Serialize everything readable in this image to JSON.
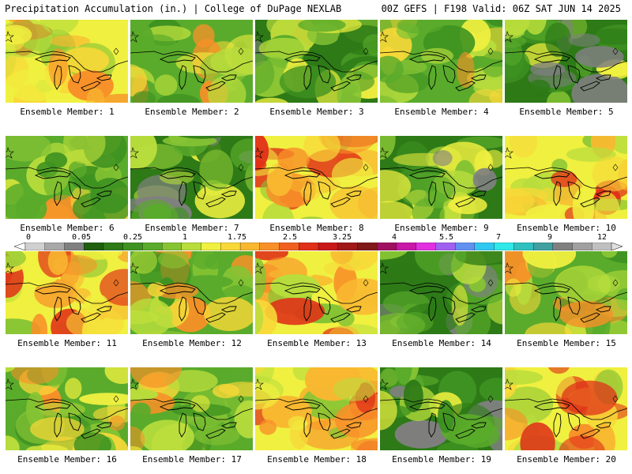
{
  "header": {
    "left_title": "Precipitation Accumulation (in.) | College of DuPage NEXLAB",
    "right_title": "00Z GEFS | F198 Valid: 06Z SAT JUN 14 2025"
  },
  "panels": [
    {
      "label": "Ensemble Member: 1",
      "scheme": "wet"
    },
    {
      "label": "Ensemble Member: 2",
      "scheme": "mixed"
    },
    {
      "label": "Ensemble Member: 3",
      "scheme": "dry"
    },
    {
      "label": "Ensemble Member: 4",
      "scheme": "mixed"
    },
    {
      "label": "Ensemble Member: 5",
      "scheme": "dry"
    },
    {
      "label": "Ensemble Member: 6",
      "scheme": "mixed"
    },
    {
      "label": "Ensemble Member: 7",
      "scheme": "dry"
    },
    {
      "label": "Ensemble Member: 8",
      "scheme": "wet"
    },
    {
      "label": "Ensemble Member: 9",
      "scheme": "dry"
    },
    {
      "label": "Ensemble Member: 10",
      "scheme": "wet"
    },
    {
      "label": "Ensemble Member: 11",
      "scheme": "wet"
    },
    {
      "label": "Ensemble Member: 12",
      "scheme": "mixed"
    },
    {
      "label": "Ensemble Member: 13",
      "scheme": "wet"
    },
    {
      "label": "Ensemble Member: 14",
      "scheme": "dry"
    },
    {
      "label": "Ensemble Member: 15",
      "scheme": "mixed"
    },
    {
      "label": "Ensemble Member: 16",
      "scheme": "mixed"
    },
    {
      "label": "Ensemble Member: 17",
      "scheme": "mixed"
    },
    {
      "label": "Ensemble Member: 18",
      "scheme": "wet"
    },
    {
      "label": "Ensemble Member: 19",
      "scheme": "dry"
    },
    {
      "label": "Ensemble Member: 20",
      "scheme": "wet"
    }
  ],
  "colorbar": {
    "labels": [
      "0",
      "0.05",
      "0.25",
      "1",
      "1.75",
      "2.5",
      "3.25",
      "4",
      "5.5",
      "7",
      "9",
      "12"
    ],
    "colors": [
      "#ffffff",
      "#d0d0d0",
      "#a8a8a8",
      "#808080",
      "#1f5f0f",
      "#2d7a17",
      "#3e9221",
      "#5aab2b",
      "#86c434",
      "#b8dd3c",
      "#f0f040",
      "#f8d838",
      "#f8b830",
      "#f89028",
      "#f06020",
      "#e03018",
      "#c81818",
      "#a01818",
      "#801818",
      "#a01060",
      "#c818a8",
      "#e030e0",
      "#a060f0",
      "#6090f0",
      "#30c8f0",
      "#30e8e8",
      "#30c0c0",
      "#40a0a0",
      "#808080",
      "#a0a0a0",
      "#c0c0c0",
      "#e0e0e0"
    ]
  }
}
